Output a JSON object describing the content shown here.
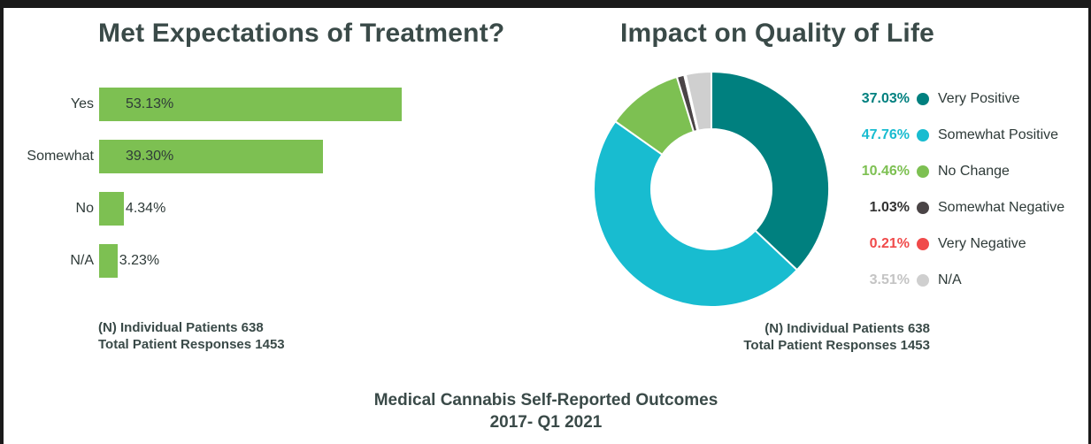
{
  "chart_data": [
    {
      "type": "bar",
      "orientation": "horizontal",
      "title": "Met Expectations of Treatment?",
      "categories": [
        "Yes",
        "Somewhat",
        "No",
        "N/A"
      ],
      "values": [
        53.13,
        39.3,
        4.34,
        3.23
      ],
      "value_labels": [
        "53.13%",
        "39.30%",
        "4.34%",
        "3.23%"
      ],
      "color": "#7dc052",
      "notes": [
        "(N) Individual Patients 638",
        "Total Patient Responses 1453"
      ]
    },
    {
      "type": "pie",
      "style": "donut",
      "title": "Impact on Quality of Life",
      "legend_position": "right",
      "slices": [
        {
          "name": "Very Positive",
          "value": 37.03,
          "label": "37.03%",
          "color": "#00807f",
          "label_color": "#00807f"
        },
        {
          "name": "Somewhat Positive",
          "value": 47.76,
          "label": "47.76%",
          "color": "#18bcd0",
          "label_color": "#18bcd0"
        },
        {
          "name": "No Change",
          "value": 10.46,
          "label": "10.46%",
          "color": "#7dc052",
          "label_color": "#7dc052"
        },
        {
          "name": "Somewhat Negative",
          "value": 1.03,
          "label": "1.03%",
          "color": "#4a4446",
          "label_color": "#333333"
        },
        {
          "name": "Very Negative",
          "value": 0.21,
          "label": "0.21%",
          "color": "#f04a4a",
          "label_color": "#f04a4a"
        },
        {
          "name": "N/A",
          "value": 3.51,
          "label": "3.51%",
          "color": "#cfcfcf",
          "label_color": "#c4c4c4"
        }
      ],
      "notes": [
        "(N) Individual Patients 638",
        "Total Patient Responses 1453"
      ]
    }
  ],
  "footer": {
    "line1": "Medical Cannabis Self-Reported Outcomes",
    "line2": "2017- Q1 2021"
  }
}
